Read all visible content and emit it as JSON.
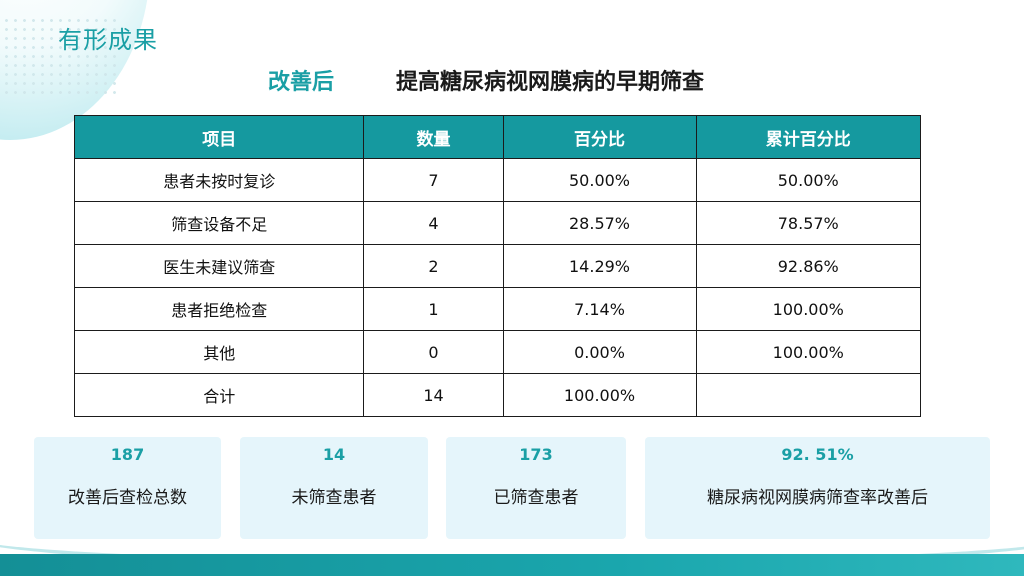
{
  "slide": {
    "section_title": "有形成果",
    "heading_label": "改善后",
    "heading_main": "提高糖尿病视网膜病的早期筛查"
  },
  "table": {
    "headers": [
      "项目",
      "数量",
      "百分比",
      "累计百分比"
    ],
    "rows": [
      [
        "患者未按时复诊",
        "7",
        "50.00%",
        "50.00%"
      ],
      [
        "筛查设备不足",
        "4",
        "28.57%",
        "78.57%"
      ],
      [
        "医生未建议筛查",
        "2",
        "14.29%",
        "92.86%"
      ],
      [
        "患者拒绝检查",
        "1",
        "7.14%",
        "100.00%"
      ],
      [
        "其他",
        "0",
        "0.00%",
        "100.00%"
      ],
      [
        "合计",
        "14",
        "100.00%",
        ""
      ]
    ]
  },
  "stats": [
    {
      "value": "187",
      "label": "改善后查检总数"
    },
    {
      "value": "14",
      "label": "未筛查患者"
    },
    {
      "value": "173",
      "label": "已筛查患者"
    },
    {
      "value": "92. 51%",
      "label": "糖尿病视网膜病筛查率改善后"
    }
  ],
  "colors": {
    "accent": "#1a9fa5",
    "header_bg": "#15999f",
    "card_bg": "#e5f5fb"
  }
}
